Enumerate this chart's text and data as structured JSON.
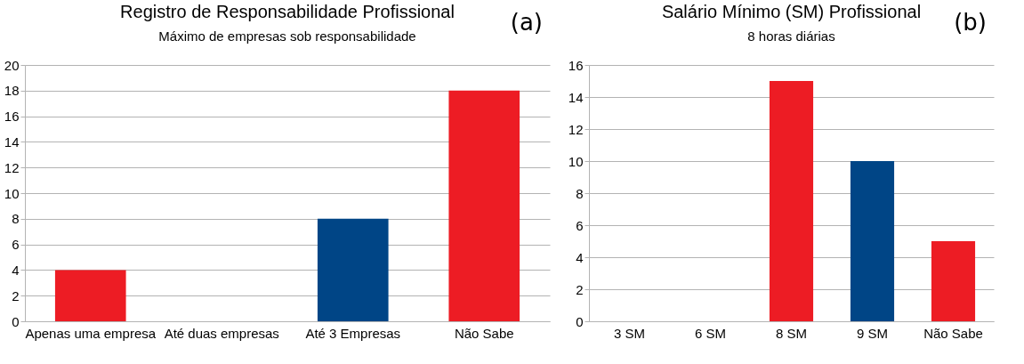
{
  "chart_data": [
    {
      "type": "bar",
      "title": "Registro de Responsabilidade Profissional",
      "subtitle": "Máximo de empresas sob responsabilidade",
      "annotations": [
        "(a)"
      ],
      "categories": [
        "Apenas uma empresa",
        "Até duas empresas",
        "Até 3 Empresas",
        "Não Sabe"
      ],
      "values": [
        4,
        0,
        8,
        18
      ],
      "colors": [
        "#ed1c24",
        "#ed1c24",
        "#004586",
        "#ed1c24"
      ],
      "ylim": [
        0,
        20
      ],
      "yticks": [
        0,
        2,
        4,
        6,
        8,
        10,
        12,
        14,
        16,
        18,
        20
      ],
      "grid": "y"
    },
    {
      "type": "bar",
      "title": "Salário Mínimo (SM) Profissional",
      "subtitle": "8 horas diárias",
      "annotations": [
        "(b)"
      ],
      "categories": [
        "3 SM",
        "6 SM",
        "8 SM",
        "9 SM",
        "Não Sabe"
      ],
      "values": [
        0,
        0,
        15,
        10,
        5
      ],
      "colors": [
        "#ed1c24",
        "#ed1c24",
        "#ed1c24",
        "#004586",
        "#ed1c24"
      ],
      "ylim": [
        0,
        16
      ],
      "yticks": [
        0,
        2,
        4,
        6,
        8,
        10,
        12,
        14,
        16
      ],
      "grid": "y"
    }
  ]
}
